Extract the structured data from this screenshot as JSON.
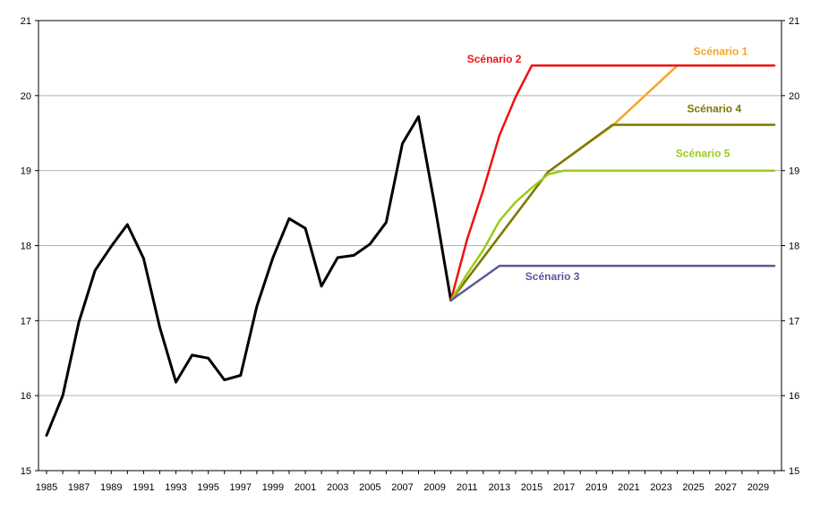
{
  "chart_data": {
    "type": "line",
    "title": "",
    "xlabel": "",
    "ylabel": "",
    "xlim": [
      1985,
      2030
    ],
    "ylim": [
      15,
      21
    ],
    "yticks": [
      15,
      16,
      17,
      18,
      19,
      20,
      21
    ],
    "xticks": [
      1985,
      1987,
      1989,
      1991,
      1993,
      1995,
      1997,
      1999,
      2001,
      2003,
      2005,
      2007,
      2009,
      2011,
      2013,
      2015,
      2017,
      2019,
      2021,
      2023,
      2025,
      2027,
      2029
    ],
    "y_axis_both_sides": true,
    "grid": "horizontal",
    "series": [
      {
        "name": "",
        "color": "#000000",
        "x": [
          1985,
          1986,
          1987,
          1988,
          1989,
          1990,
          1991,
          1992,
          1993,
          1994,
          1995,
          1996,
          1997,
          1998,
          1999,
          2000,
          2001,
          2002,
          2003,
          2004,
          2005,
          2006,
          2007,
          2008,
          2009,
          2010
        ],
        "y": [
          15.47,
          16.0,
          16.98,
          17.67,
          17.99,
          18.28,
          17.83,
          16.91,
          16.18,
          16.54,
          16.5,
          16.21,
          16.27,
          17.19,
          17.84,
          18.36,
          18.23,
          17.46,
          17.84,
          17.87,
          18.02,
          18.31,
          19.36,
          19.72,
          18.54,
          17.27
        ]
      },
      {
        "name": "Scénario 1",
        "color": "#f5a623",
        "x": [
          2010,
          2016,
          2020,
          2024,
          2030
        ],
        "y": [
          17.27,
          18.98,
          19.6,
          20.4,
          20.4
        ]
      },
      {
        "name": "Scénario 2",
        "color": "#ee1111",
        "x": [
          2010,
          2011,
          2012,
          2013,
          2014,
          2015,
          2030
        ],
        "y": [
          17.27,
          18.08,
          18.74,
          19.47,
          19.98,
          20.4,
          20.4
        ]
      },
      {
        "name": "Scénario 4",
        "color": "#7a7a00",
        "x": [
          2010,
          2016,
          2020,
          2030
        ],
        "y": [
          17.27,
          18.98,
          19.61,
          19.61
        ]
      },
      {
        "name": "Scénario 5",
        "color": "#9acd1a",
        "x": [
          2010,
          2011,
          2012,
          2013,
          2014,
          2015,
          2016,
          2017,
          2030
        ],
        "y": [
          17.27,
          17.62,
          17.94,
          18.33,
          18.58,
          18.77,
          18.95,
          19.0,
          19.0
        ]
      },
      {
        "name": "Scénario 3",
        "color": "#5a5a9a",
        "x": [
          2010,
          2013,
          2030
        ],
        "y": [
          17.27,
          17.73,
          17.73
        ]
      }
    ],
    "annotations": [
      {
        "text": "Scénario 2",
        "series": 2,
        "x": 2011.0,
        "y": 20.44,
        "anchor": "start"
      },
      {
        "text": "Scénario 1",
        "series": 1,
        "x": 2025.0,
        "y": 20.54,
        "anchor": "start"
      },
      {
        "text": "Scénario 4",
        "series": 3,
        "x": 2024.6,
        "y": 19.78,
        "anchor": "start"
      },
      {
        "text": "Scénario 5",
        "series": 4,
        "x": 2023.9,
        "y": 19.18,
        "anchor": "start"
      },
      {
        "text": "Scénario 3",
        "series": 5,
        "x": 2014.6,
        "y": 17.54,
        "anchor": "start"
      }
    ]
  }
}
